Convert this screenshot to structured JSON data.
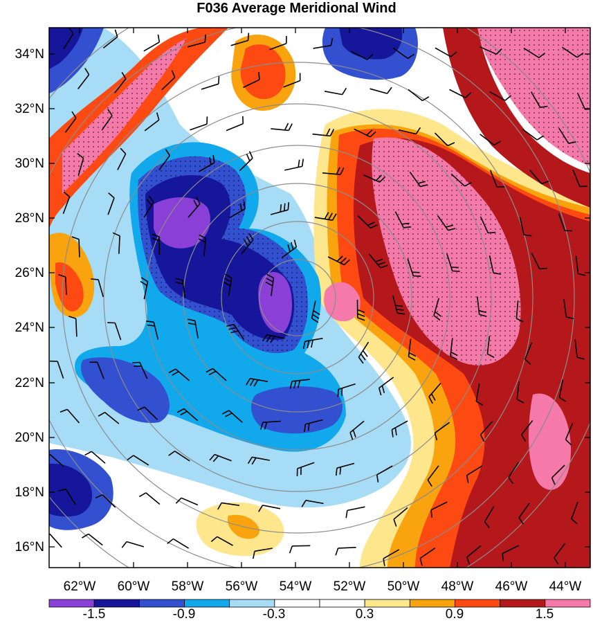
{
  "title": "F036 Average Meridional Wind",
  "lat_ticks": [
    "34°N",
    "32°N",
    "30°N",
    "28°N",
    "26°N",
    "24°N",
    "22°N",
    "20°N",
    "18°N",
    "16°N"
  ],
  "lon_ticks": [
    "62°W",
    "60°W",
    "58°W",
    "56°W",
    "54°W",
    "52°W",
    "50°W",
    "48°W",
    "46°W",
    "44°W"
  ],
  "colorbar": {
    "colors": [
      "#8a3fd6",
      "#16169a",
      "#3350d0",
      "#12a8ec",
      "#a6dcf6",
      "#ffffff",
      "#ffffff",
      "#fde68c",
      "#f9a40f",
      "#fd4a12",
      "#b4181a",
      "#f57aa9"
    ],
    "labels": [
      "-1.5",
      "-0.9",
      "-0.3",
      "0.3",
      "0.9",
      "1.5"
    ]
  }
}
